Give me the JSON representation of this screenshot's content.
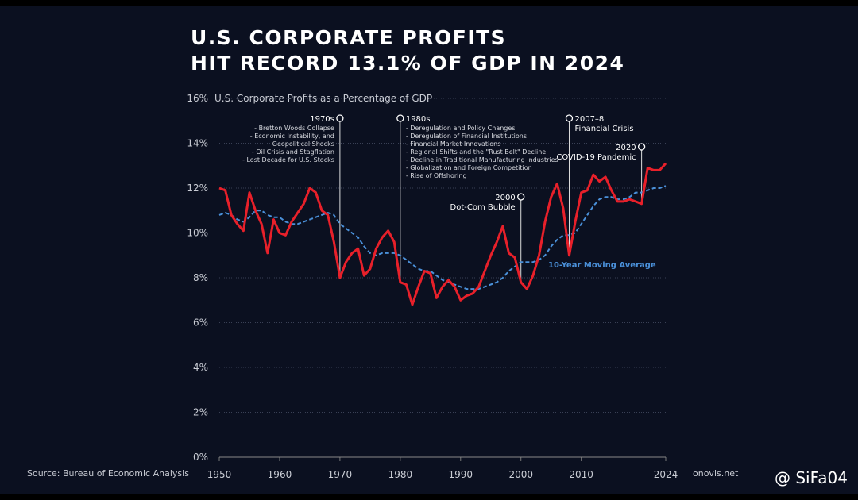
{
  "chart_data": {
    "type": "line",
    "title_lines": [
      "U.S. CORPORATE PROFITS",
      "HIT RECORD 13.1% OF GDP IN 2024"
    ],
    "subtitle": "U.S. Corporate Profits as a Percentage of GDP",
    "source": "Source: Bureau of Economic Analysis",
    "footer_right": "onovis.net",
    "watermark": "@ SiFa04",
    "x": [
      1950,
      1951,
      1952,
      1953,
      1954,
      1955,
      1956,
      1957,
      1958,
      1959,
      1960,
      1961,
      1962,
      1963,
      1964,
      1965,
      1966,
      1967,
      1968,
      1969,
      1970,
      1971,
      1972,
      1973,
      1974,
      1975,
      1976,
      1977,
      1978,
      1979,
      1980,
      1981,
      1982,
      1983,
      1984,
      1985,
      1986,
      1987,
      1988,
      1989,
      1990,
      1991,
      1992,
      1993,
      1994,
      1995,
      1996,
      1997,
      1998,
      1999,
      2000,
      2001,
      2002,
      2003,
      2004,
      2005,
      2006,
      2007,
      2008,
      2009,
      2010,
      2011,
      2012,
      2013,
      2014,
      2015,
      2016,
      2017,
      2018,
      2019,
      2020,
      2021,
      2022,
      2023,
      2024
    ],
    "series": [
      {
        "color": "#e8202a",
        "values": [
          12.0,
          11.9,
          10.8,
          10.4,
          10.1,
          11.8,
          11.0,
          10.4,
          9.1,
          10.6,
          10.0,
          9.9,
          10.5,
          10.9,
          11.3,
          12.0,
          11.8,
          11.0,
          10.8,
          9.6,
          8.0,
          8.7,
          9.1,
          9.3,
          8.1,
          8.4,
          9.3,
          9.8,
          10.1,
          9.6,
          7.8,
          7.7,
          6.8,
          7.6,
          8.3,
          8.2,
          7.1,
          7.6,
          7.9,
          7.6,
          7.0,
          7.2,
          7.3,
          7.6,
          8.3,
          9.0,
          9.6,
          10.3,
          9.1,
          8.9,
          7.8,
          7.5,
          8.1,
          9.0,
          10.5,
          11.6,
          12.2,
          11.1,
          9.0,
          10.5,
          11.8,
          11.9,
          12.6,
          12.3,
          12.5,
          11.9,
          11.4,
          11.4,
          11.5,
          11.4,
          11.3,
          12.9,
          12.8,
          12.8,
          13.1
        ]
      },
      {
        "name": "10-Year Moving Average",
        "color": "#4a90d9",
        "values": [
          10.8,
          10.9,
          10.8,
          10.6,
          10.5,
          10.7,
          11.0,
          11.0,
          10.8,
          10.7,
          10.7,
          10.5,
          10.4,
          10.4,
          10.5,
          10.6,
          10.7,
          10.8,
          10.9,
          10.8,
          10.4,
          10.2,
          10.0,
          9.8,
          9.4,
          9.1,
          9.0,
          9.1,
          9.1,
          9.1,
          9.0,
          8.8,
          8.6,
          8.4,
          8.3,
          8.3,
          8.1,
          7.9,
          7.8,
          7.7,
          7.6,
          7.5,
          7.5,
          7.5,
          7.6,
          7.7,
          7.8,
          8.0,
          8.3,
          8.5,
          8.7,
          8.7,
          8.7,
          8.8,
          9.0,
          9.4,
          9.7,
          9.9,
          9.9,
          10.0,
          10.4,
          10.8,
          11.2,
          11.5,
          11.6,
          11.6,
          11.5,
          11.5,
          11.6,
          11.8,
          11.8,
          11.9,
          12.0,
          12.0,
          12.1
        ]
      }
    ],
    "xlim": [
      1950,
      2024
    ],
    "xticks": [
      1950,
      1960,
      1970,
      1980,
      1990,
      2000,
      2010,
      2024
    ],
    "ylim": [
      0,
      16
    ],
    "yticks": [
      {
        "value": 0,
        "label": "0%"
      },
      {
        "value": 2,
        "label": "2%"
      },
      {
        "value": 4,
        "label": "4%"
      },
      {
        "value": 6,
        "label": "6%"
      },
      {
        "value": 8,
        "label": "8%"
      },
      {
        "value": 10,
        "label": "10%"
      },
      {
        "value": 12,
        "label": "12%"
      },
      {
        "value": 14,
        "label": "14%"
      },
      {
        "value": 16,
        "label": "16%"
      }
    ],
    "grid": true,
    "annotations": [
      {
        "x": 1970,
        "title": "1970s",
        "lines": [
          "- Bretton Woods Collapse",
          "- Economic Instability, and",
          "Geopolitical Shocks",
          "- Oil Crisis and Stagflation",
          "- Lost Decade for U.S. Stocks"
        ]
      },
      {
        "x": 1980,
        "title": "1980s",
        "lines": [
          "- Deregulation and Policy Changes",
          "- Deregulation of Financial Institutions",
          "- Financial Market Innovations",
          "- Regional Shifts and the \"Rust Belt\" Decline",
          "- Decline in Traditional Manufacturing Industries",
          "- Globalization and Foreign Competition",
          "- Rise of Offshoring"
        ]
      },
      {
        "x": 2000,
        "title": "2000",
        "lines": [
          "Dot-Com Bubble"
        ]
      },
      {
        "x": 2008,
        "title": "2007–8",
        "lines": [
          "Financial Crisis"
        ]
      },
      {
        "x": 2020,
        "title": "2020",
        "lines": [
          "COVID-19 Pandemic"
        ]
      }
    ]
  }
}
